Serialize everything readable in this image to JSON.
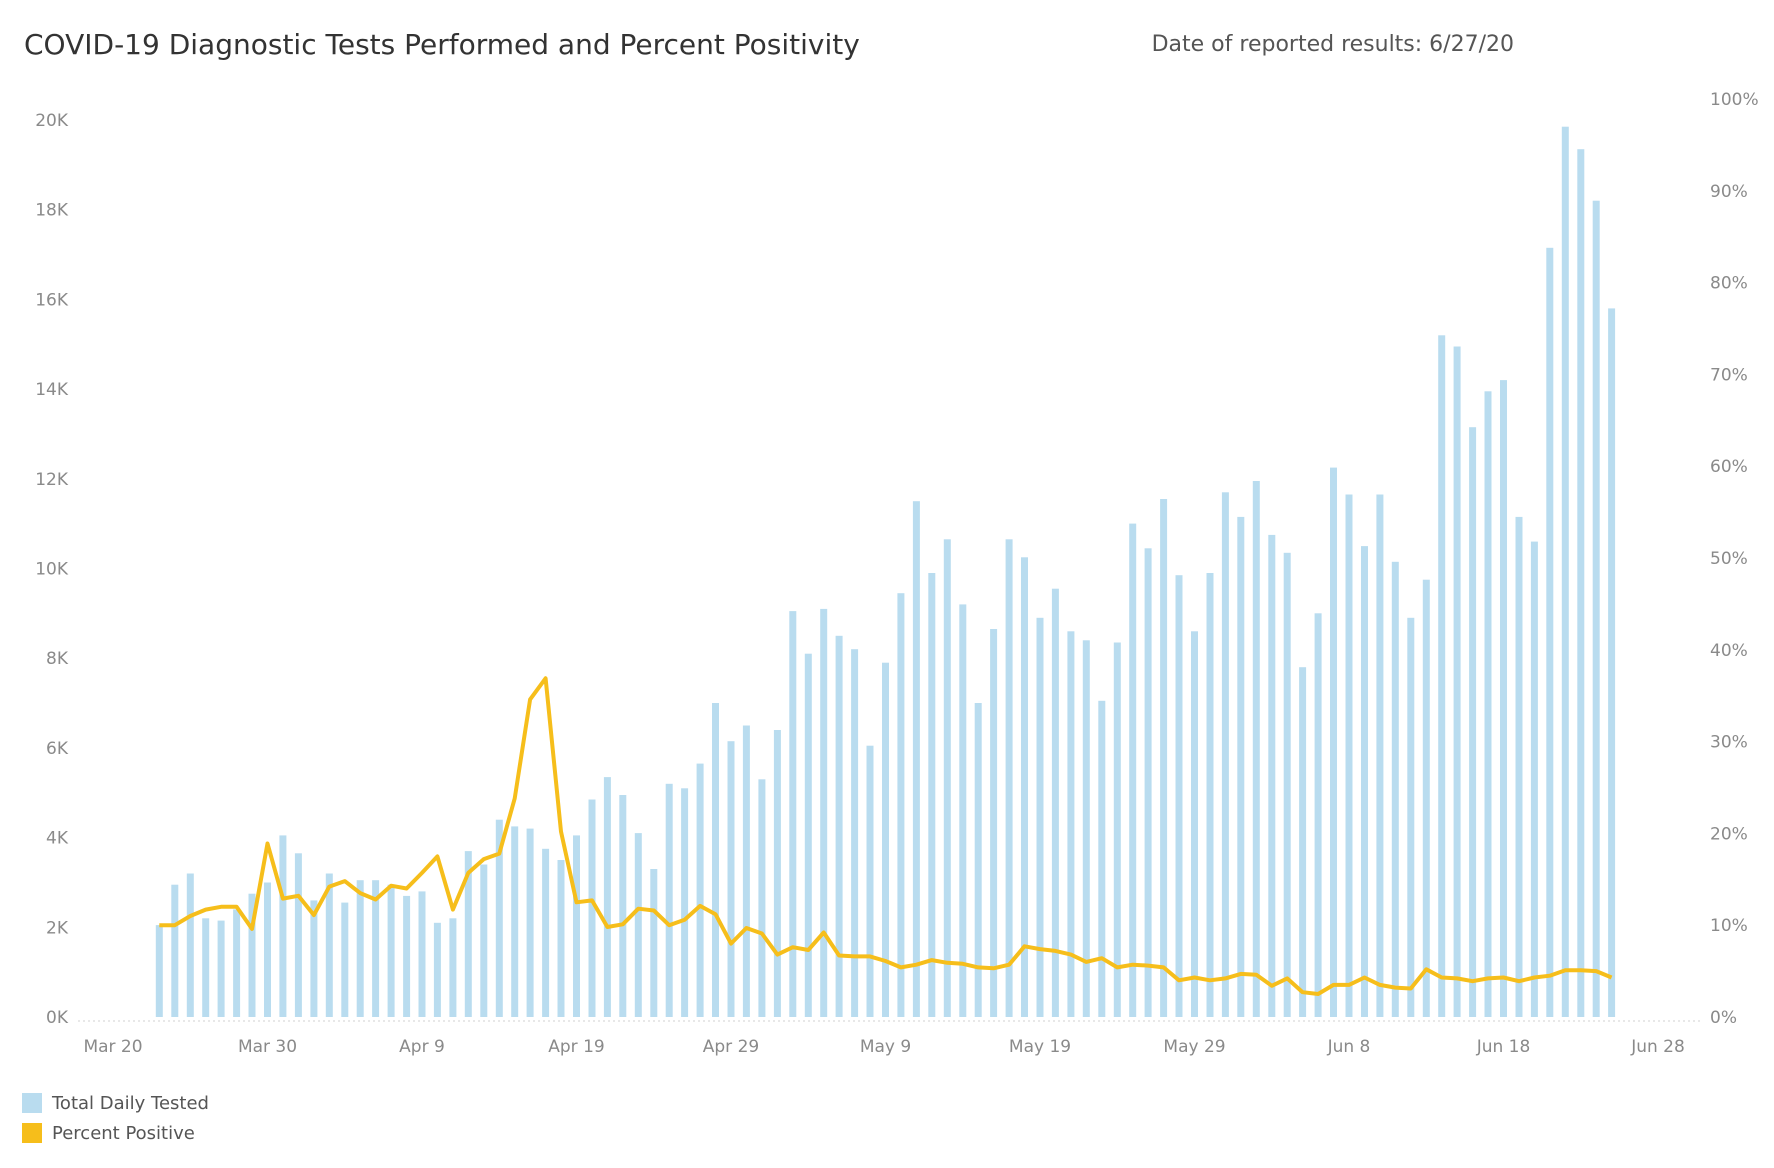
{
  "header": {
    "title": "COVID-19 Diagnostic Tests Performed and Percent Positivity",
    "date_label": "Date of reported results: 6/27/20"
  },
  "colors": {
    "bars": "#b9dcef",
    "line": "#f6be1b"
  },
  "chart_data": {
    "type": "bar",
    "title": "COVID-19 Diagnostic Tests Performed and Percent Positivity",
    "x": {
      "start_date": "2020-03-20",
      "range": [
        "Mar 20",
        "Jun 29"
      ],
      "tick_labels": [
        "Mar 20",
        "Mar 30",
        "Apr 9",
        "Apr 19",
        "Apr 29",
        "May 9",
        "May 19",
        "May 29",
        "Jun 8",
        "Jun 18",
        "Jun 28"
      ]
    },
    "y_left": {
      "range": [
        0,
        20000
      ],
      "tick_labels": [
        "0K",
        "2K",
        "4K",
        "6K",
        "8K",
        "10K",
        "12K",
        "14K",
        "16K",
        "18K",
        "20K"
      ]
    },
    "y_right": {
      "range": [
        0,
        100
      ],
      "tick_labels": [
        "0%",
        "10%",
        "20%",
        "30%",
        "40%",
        "50%",
        "60%",
        "70%",
        "80%",
        "90%",
        "100%"
      ]
    },
    "grid": false,
    "legend_position": "bottom-left",
    "series": [
      {
        "name": "Total Daily Tested",
        "type": "bar",
        "axis": "left",
        "start": "Mar 23",
        "values": [
          2050,
          2950,
          3200,
          2200,
          2150,
          2400,
          2750,
          3000,
          4050,
          3650,
          2600,
          3200,
          2550,
          3050,
          3050,
          2950,
          2700,
          2800,
          2100,
          2200,
          3700,
          3400,
          4400,
          4250,
          4200,
          3750,
          3500,
          4050,
          4850,
          5350,
          4950,
          4100,
          3300,
          5200,
          5100,
          5650,
          7000,
          6150,
          6500,
          5300,
          6400,
          9050,
          8100,
          9100,
          8500,
          8200,
          6050,
          7900,
          9450,
          11500,
          9900,
          10650,
          9200,
          7000,
          8650,
          10650,
          10250,
          8900,
          9550,
          8600,
          8400,
          7050,
          8350,
          11000,
          10450,
          11550,
          9850,
          8600,
          9900,
          11700,
          11150,
          11950,
          10750,
          10350,
          7800,
          9000,
          12250,
          11650,
          10500,
          11650,
          10150,
          8900,
          9750,
          15200,
          14950,
          13150,
          13950,
          14200,
          11150,
          10600,
          17150,
          19850,
          19350,
          18200,
          15800
        ]
      },
      {
        "name": "Percent Positive",
        "type": "line",
        "axis": "right",
        "start": "Mar 23",
        "values": [
          10,
          10,
          11,
          11.7,
          12,
          12,
          9.6,
          18.9,
          12.9,
          13.2,
          11.1,
          14.2,
          14.8,
          13.5,
          12.8,
          14.3,
          14,
          15.7,
          17.5,
          11.7,
          15.7,
          17.2,
          17.8,
          23.8,
          34.6,
          36.9,
          20.2,
          12.5,
          12.7,
          9.8,
          10.1,
          11.8,
          11.6,
          10,
          10.6,
          12.1,
          11.2,
          8,
          9.7,
          9.1,
          6.8,
          7.6,
          7.3,
          9.2,
          6.7,
          6.6,
          6.6,
          6.1,
          5.4,
          5.7,
          6.2,
          5.9,
          5.8,
          5.4,
          5.3,
          5.7,
          7.7,
          7.4,
          7.2,
          6.8,
          6,
          6.4,
          5.4,
          5.7,
          5.6,
          5.4,
          4,
          4.3,
          4,
          4.2,
          4.7,
          4.6,
          3.4,
          4.2,
          2.7,
          2.5,
          3.5,
          3.5,
          4.3,
          3.5,
          3.2,
          3.1,
          5.2,
          4.3,
          4.2,
          3.9,
          4.2,
          4.3,
          3.9,
          4.3,
          4.5,
          5.1,
          5.1,
          5,
          4.3
        ]
      }
    ]
  },
  "legend": {
    "items": [
      {
        "label": "Total Daily Tested"
      },
      {
        "label": "Percent Positive"
      }
    ]
  }
}
